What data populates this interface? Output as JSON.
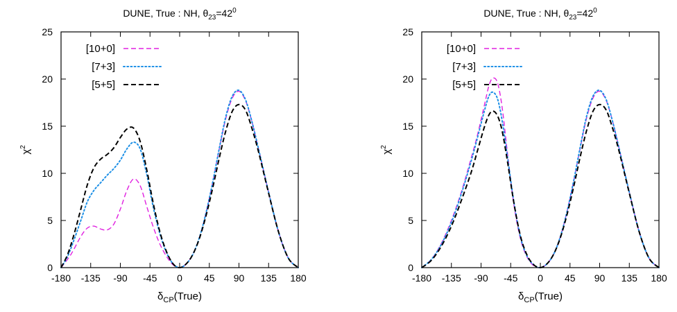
{
  "chart_data": [
    {
      "type": "line",
      "title": "DUNE, True : NH, θ₂₃=42⁰",
      "xlabel": "δ_CP(True)",
      "ylabel": "χ²",
      "xlim": [
        -180,
        180
      ],
      "ylim": [
        0,
        25
      ],
      "xticks": [
        "-180",
        "-135",
        "-90",
        "-45",
        "0",
        "45",
        "90",
        "135",
        "180"
      ],
      "yticks": [
        "0",
        "5",
        "10",
        "15",
        "20",
        "25"
      ],
      "grid": false,
      "legend": "top-left",
      "series": [
        {
          "name": "[10+0]",
          "color": "#e020e0",
          "style": "dashed",
          "x": [
            -180,
            -165,
            -150,
            -140,
            -130,
            -120,
            -110,
            -100,
            -90,
            -80,
            -70,
            -60,
            -50,
            -40,
            -30,
            -20,
            -10,
            0,
            10,
            20,
            30,
            40,
            50,
            60,
            70,
            80,
            90,
            100,
            110,
            120,
            135,
            150,
            165,
            180
          ],
          "y": [
            0,
            1.4,
            3.3,
            4.2,
            4.4,
            4.1,
            4.0,
            4.6,
            6.2,
            8.2,
            9.4,
            8.7,
            6.5,
            4.3,
            2.5,
            1.2,
            0.3,
            0,
            0.4,
            1.4,
            3.2,
            5.8,
            9.0,
            12.5,
            15.8,
            18.0,
            18.7,
            17.7,
            15.4,
            12.5,
            8.0,
            3.8,
            1.0,
            0
          ]
        },
        {
          "name": "[7+3]",
          "color": "#1e90e6",
          "style": "dotted",
          "x": [
            -180,
            -170,
            -160,
            -150,
            -140,
            -130,
            -120,
            -110,
            -100,
            -90,
            -80,
            -70,
            -60,
            -50,
            -40,
            -30,
            -20,
            -10,
            0,
            10,
            20,
            30,
            40,
            50,
            60,
            70,
            80,
            90,
            100,
            110,
            120,
            135,
            150,
            165,
            180
          ],
          "y": [
            0,
            1.2,
            3.0,
            5.0,
            7.0,
            8.2,
            9.0,
            9.8,
            10.5,
            11.4,
            12.6,
            13.3,
            12.6,
            9.9,
            6.4,
            3.6,
            1.6,
            0.4,
            0,
            0.4,
            1.4,
            3.2,
            5.8,
            9.0,
            12.6,
            16.0,
            18.2,
            18.8,
            17.8,
            15.4,
            12.5,
            8.0,
            3.8,
            1.0,
            0
          ]
        },
        {
          "name": "[5+5]",
          "color": "#000000",
          "style": "dashed",
          "x": [
            -180,
            -170,
            -160,
            -150,
            -140,
            -130,
            -120,
            -110,
            -100,
            -90,
            -80,
            -70,
            -60,
            -50,
            -40,
            -30,
            -20,
            -10,
            0,
            10,
            20,
            30,
            40,
            50,
            60,
            70,
            80,
            90,
            100,
            110,
            120,
            135,
            150,
            165,
            180
          ],
          "y": [
            0,
            1.4,
            3.6,
            6.2,
            8.8,
            10.6,
            11.5,
            12.0,
            12.7,
            13.8,
            14.7,
            14.8,
            13.4,
            10.4,
            6.8,
            3.8,
            1.7,
            0.4,
            0,
            0.4,
            1.4,
            3.1,
            5.5,
            8.4,
            11.6,
            14.5,
            16.6,
            17.3,
            16.7,
            14.7,
            12.2,
            7.9,
            3.8,
            1.0,
            0
          ]
        }
      ]
    },
    {
      "type": "line",
      "title": "DUNE, True : NH, θ₂₃=42⁰",
      "xlabel": "δ_CP(True)",
      "ylabel": "χ²",
      "xlim": [
        -180,
        180
      ],
      "ylim": [
        0,
        25
      ],
      "xticks": [
        "-180",
        "-135",
        "-90",
        "-45",
        "0",
        "45",
        "90",
        "135",
        "180"
      ],
      "yticks": [
        "0",
        "5",
        "10",
        "15",
        "20",
        "25"
      ],
      "grid": false,
      "legend": "top-left",
      "series": [
        {
          "name": "[10+0]",
          "color": "#e020e0",
          "style": "dashed",
          "x": [
            -180,
            -165,
            -150,
            -135,
            -120,
            -105,
            -95,
            -85,
            -78,
            -72,
            -65,
            -58,
            -50,
            -40,
            -30,
            -20,
            -10,
            0,
            10,
            20,
            30,
            40,
            50,
            60,
            70,
            80,
            90,
            100,
            110,
            120,
            135,
            150,
            165,
            180
          ],
          "y": [
            0,
            0.9,
            2.6,
            5.0,
            8.0,
            11.6,
            14.2,
            17.2,
            19.3,
            20.1,
            19.6,
            17.0,
            12.2,
            6.6,
            3.0,
            1.1,
            0.2,
            0,
            0.4,
            1.4,
            3.2,
            5.8,
            9.0,
            12.5,
            15.8,
            18.0,
            18.7,
            17.7,
            15.4,
            12.5,
            8.0,
            3.8,
            1.0,
            0
          ]
        },
        {
          "name": "[7+3]",
          "color": "#1e90e6",
          "style": "dotted",
          "x": [
            -180,
            -165,
            -150,
            -135,
            -120,
            -105,
            -95,
            -85,
            -78,
            -72,
            -65,
            -58,
            -50,
            -40,
            -30,
            -20,
            -10,
            0,
            10,
            20,
            30,
            40,
            50,
            60,
            70,
            80,
            90,
            100,
            110,
            120,
            135,
            150,
            165,
            180
          ],
          "y": [
            0,
            0.9,
            2.5,
            4.8,
            7.8,
            11.3,
            13.9,
            16.6,
            18.2,
            18.6,
            17.9,
            15.6,
            11.8,
            6.9,
            3.2,
            1.2,
            0.3,
            0,
            0.4,
            1.4,
            3.2,
            5.8,
            9.0,
            12.6,
            16.0,
            18.2,
            18.8,
            17.8,
            15.4,
            12.5,
            8.0,
            3.8,
            1.0,
            0
          ]
        },
        {
          "name": "[5+5]",
          "color": "#000000",
          "style": "dashed",
          "x": [
            -180,
            -165,
            -150,
            -135,
            -120,
            -105,
            -95,
            -85,
            -78,
            -72,
            -65,
            -58,
            -50,
            -40,
            -30,
            -20,
            -10,
            0,
            10,
            20,
            30,
            40,
            50,
            60,
            70,
            80,
            90,
            100,
            110,
            120,
            135,
            150,
            165,
            180
          ],
          "y": [
            0,
            0.8,
            2.3,
            4.4,
            7.1,
            10.1,
            12.5,
            14.9,
            16.2,
            16.6,
            16.1,
            14.5,
            11.3,
            6.8,
            3.3,
            1.3,
            0.3,
            0,
            0.4,
            1.4,
            3.1,
            5.5,
            8.4,
            11.6,
            14.5,
            16.6,
            17.3,
            16.7,
            14.7,
            12.2,
            7.9,
            3.8,
            1.0,
            0
          ]
        }
      ]
    }
  ]
}
